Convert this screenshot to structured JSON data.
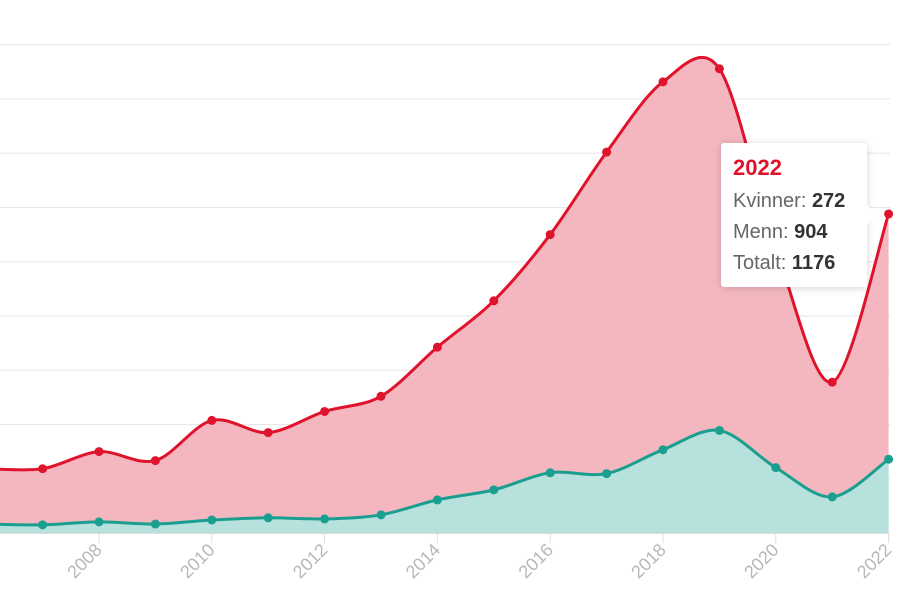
{
  "chart_data": {
    "type": "area",
    "stacked": true,
    "title": "",
    "xlabel": "",
    "ylabel": "",
    "x": [
      2006,
      2007,
      2008,
      2009,
      2010,
      2011,
      2012,
      2013,
      2014,
      2015,
      2016,
      2017,
      2018,
      2019,
      2020,
      2021,
      2022
    ],
    "x_tick_labels": [
      "2008",
      "2010",
      "2012",
      "2014",
      "2016",
      "2018",
      "2020",
      "2022"
    ],
    "ylim": [
      0,
      1800
    ],
    "grid": true,
    "series": [
      {
        "name": "Kvinner",
        "color": "#1a9e8f",
        "fill": "#b7e1dc",
        "values": [
          33,
          30,
          41,
          33,
          48,
          56,
          52,
          67,
          122,
          159,
          222,
          219,
          307,
          378,
          241,
          133,
          272
        ]
      },
      {
        "name": "Menn",
        "color": "#e0132c",
        "fill": "#f4b7bf",
        "values": [
          204,
          207,
          259,
          234,
          367,
          314,
          396,
          437,
          563,
          697,
          878,
          1185,
          1356,
          1333,
          810,
          423,
          904
        ]
      }
    ],
    "totals": [
      237,
      237,
      300,
      267,
      415,
      370,
      448,
      504,
      685,
      856,
      1100,
      1404,
      1663,
      1711,
      1051,
      556,
      1176
    ]
  },
  "tooltip": {
    "year": "2022",
    "rows": [
      {
        "label": "Kvinner: ",
        "value": "272"
      },
      {
        "label": "Menn: ",
        "value": "904"
      },
      {
        "label": "Totalt: ",
        "value": "1176"
      }
    ]
  }
}
